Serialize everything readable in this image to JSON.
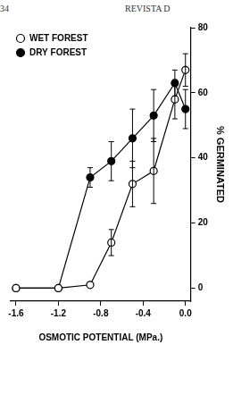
{
  "header": {
    "page": "34",
    "journal": "REVISTA D"
  },
  "chart_data": {
    "type": "line",
    "x_label": "OSMOTIC POTENTIAL (MPa.)",
    "y_label": "% GERMINATED",
    "x": [
      -1.6,
      -1.2,
      -0.9,
      -0.7,
      -0.5,
      -0.3,
      -0.1,
      0.0
    ],
    "series": [
      {
        "name": "WET FOREST",
        "color": "#000000",
        "marker": "open_circle",
        "values": [
          0,
          0,
          1,
          14,
          32,
          36,
          58,
          67
        ],
        "errors": [
          0,
          0,
          0,
          4,
          7,
          10,
          6,
          5
        ]
      },
      {
        "name": "DRY FOREST",
        "color": "#000000",
        "marker": "circle",
        "values": [
          0,
          0,
          34,
          39,
          46,
          53,
          63,
          55
        ],
        "errors": [
          0,
          0,
          3,
          6,
          9,
          8,
          4,
          6
        ]
      }
    ],
    "xlim": [
      -1.65,
      0.05
    ],
    "xticks": [
      -1.6,
      -1.2,
      -0.8,
      -0.4,
      {
        "value": 0,
        "label": "0.0"
      }
    ],
    "ylim": [
      -4,
      80
    ],
    "yticks": [
      0,
      20,
      40,
      60,
      80
    ],
    "grid": false,
    "legend": "top-left"
  }
}
